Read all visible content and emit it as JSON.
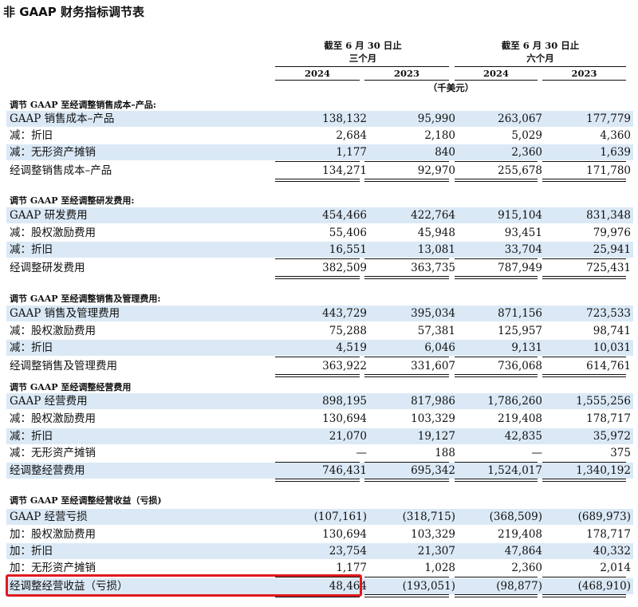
{
  "title": "非 GAAP 财务指标调节表",
  "header": {
    "period_three": "截至 6 月 30 日止",
    "sub_three": "三个月",
    "period_six": "截至 6 月 30 日止",
    "sub_six": "六个月",
    "years": [
      "2024",
      "2023",
      "2024",
      "2023"
    ],
    "unit": "（千美元）"
  },
  "sections": [
    {
      "heading": "调节 GAAP 至经调整销售成本–产品:",
      "rows": [
        {
          "label": "GAAP 销售成本–产品",
          "values": [
            "138,132",
            "95,990",
            "263,067",
            "177,779"
          ]
        },
        {
          "label": "减：折旧",
          "values": [
            "2,684",
            "2,180",
            "5,029",
            "4,360"
          ]
        },
        {
          "label": "减：无形资产摊销",
          "values": [
            "1,177",
            "840",
            "2,360",
            "1,639"
          ]
        },
        {
          "label": "经调整销售成本–产品",
          "values": [
            "134,271",
            "92,970",
            "255,678",
            "171,780"
          ]
        }
      ]
    },
    {
      "heading": "调节 GAAP 至经调整研发费用:",
      "rows": [
        {
          "label": "GAAP 研发费用",
          "values": [
            "454,466",
            "422,764",
            "915,104",
            "831,348"
          ]
        },
        {
          "label": "减：股权激励费用",
          "values": [
            "55,406",
            "45,948",
            "93,451",
            "79,976"
          ]
        },
        {
          "label": "减：折旧",
          "values": [
            "16,551",
            "13,081",
            "33,704",
            "25,941"
          ]
        },
        {
          "label": "经调整研发费用",
          "values": [
            "382,509",
            "363,735",
            "787,949",
            "725,431"
          ]
        }
      ]
    },
    {
      "heading": "调节 GAAP 至经调整销售及管理费用:",
      "rows": [
        {
          "label": "GAAP 销售及管理费用",
          "values": [
            "443,729",
            "395,034",
            "871,156",
            "723,533"
          ]
        },
        {
          "label": "减：股权激励费用",
          "values": [
            "75,288",
            "57,381",
            "125,957",
            "98,741"
          ]
        },
        {
          "label": "减：折旧",
          "values": [
            "4,519",
            "6,046",
            "9,131",
            "10,031"
          ]
        },
        {
          "label": "经调整销售及管理费用",
          "values": [
            "363,922",
            "331,607",
            "736,068",
            "614,761"
          ]
        }
      ]
    },
    {
      "heading": "调节 GAAP 至经调整经营费用",
      "rows": [
        {
          "label": "GAAP 经营费用",
          "values": [
            "898,195",
            "817,986",
            "1,786,260",
            "1,555,256"
          ]
        },
        {
          "label": "减：股权激励费用",
          "values": [
            "130,694",
            "103,329",
            "219,408",
            "178,717"
          ]
        },
        {
          "label": "减：折旧",
          "values": [
            "21,070",
            "19,127",
            "42,835",
            "35,972"
          ]
        },
        {
          "label": "减：无形资产摊销",
          "values": [
            "—",
            "188",
            "—",
            "375"
          ]
        },
        {
          "label": "经调整经营费用",
          "values": [
            "746,431",
            "695,342",
            "1,524,017",
            "1,340,192"
          ]
        }
      ]
    },
    {
      "heading": "调节 GAAP 至经调整经营收益（亏损)",
      "rows": [
        {
          "label": "GAAP 经营亏损",
          "values": [
            "(107,161)",
            "(318,715)",
            "(368,509)",
            "(689,973)"
          ]
        },
        {
          "label": "加：股权激励费用",
          "values": [
            "130,694",
            "103,329",
            "219,408",
            "178,717"
          ]
        },
        {
          "label": "加：折旧",
          "values": [
            "23,754",
            "21,307",
            "47,864",
            "40,332"
          ]
        },
        {
          "label": "加：无形资产摊销",
          "values": [
            "1,177",
            "1,028",
            "2,360",
            "2,014"
          ]
        },
        {
          "label": "经调整经营收益（亏损）",
          "values": [
            "48,464",
            "(193,051)",
            "(98,877)",
            "(468,910)"
          ]
        }
      ]
    }
  ]
}
